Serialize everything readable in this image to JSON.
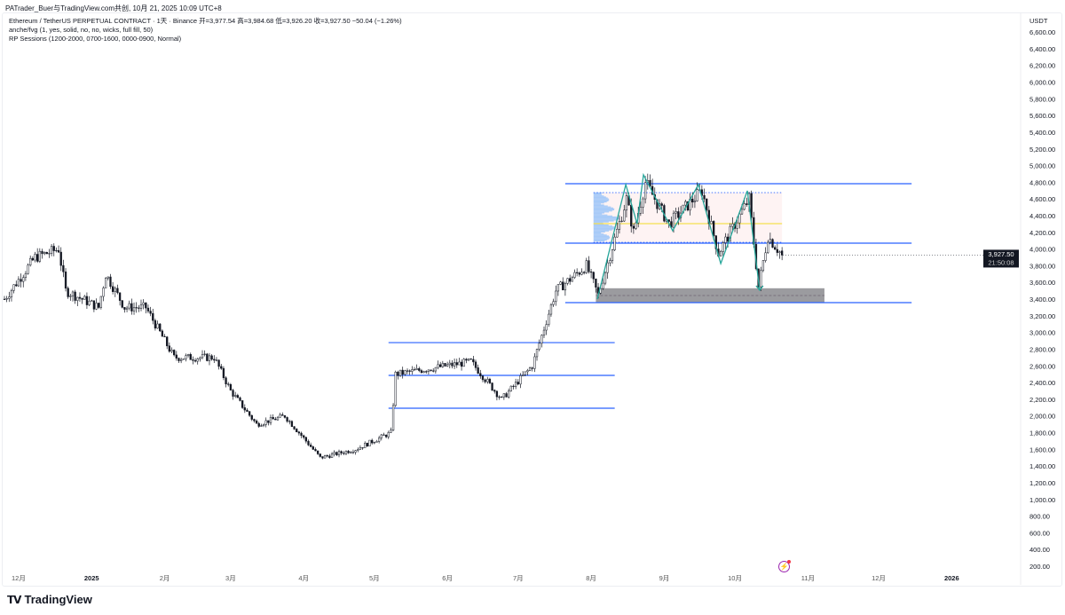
{
  "header": {
    "credit": "PATrader_Buer与TradingView.com共创, 10月 21, 2025 10:09 UTC+8"
  },
  "legend": {
    "symbol_line": "Ethereum / TetherUS PERPETUAL CONTRACT · 1天 · Binance  开=3,977.54  高=3,984.68  低=3,926.20  收=3,927.50  −50.04 (−1.26%)",
    "indicator_1": "anche/fvg (1, yes, solid, no, no, wicks, full fill, 50)",
    "indicator_2": "RP Sessions (1200-2000, 0700-1600, 0000-0900, Normal)"
  },
  "price_axis": {
    "currency": "USDT",
    "last_price": "3,927.50",
    "countdown": "21:50:08"
  },
  "branding": {
    "logo_text": "TradingView",
    "logo_mark": "TV"
  },
  "colors": {
    "up": "#ffffff",
    "down": "#131722",
    "level": "#2962ff",
    "zigzag": "#26a69a",
    "poc": "#f5e050",
    "zone": "#8a8a8e",
    "profile": "#90bff9"
  },
  "chart_data": {
    "type": "candlestick",
    "title": "Ethereum / TetherUS PERPETUAL CONTRACT · 1天 · Binance",
    "ylim": [
      200,
      6600
    ],
    "y_ticks": [
      "6,600.00",
      "6,400.00",
      "6,200.00",
      "6,000.00",
      "5,800.00",
      "5,600.00",
      "5,400.00",
      "5,200.00",
      "5,000.00",
      "4,800.00",
      "4,600.00",
      "4,400.00",
      "4,200.00",
      "4,000.00",
      "3,800.00",
      "3,600.00",
      "3,400.00",
      "3,200.00",
      "3,000.00",
      "2,800.00",
      "2,600.00",
      "2,400.00",
      "2,200.00",
      "2,000.00",
      "1,800.00",
      "1,600.00",
      "1,400.00",
      "1,200.00",
      "1,000.00",
      "800.00",
      "600.00",
      "400.00",
      "200.00"
    ],
    "x_ticks": [
      {
        "label": "12月",
        "day": 6
      },
      {
        "label": "2025",
        "day": 37,
        "year": true
      },
      {
        "label": "2月",
        "day": 68
      },
      {
        "label": "3月",
        "day": 96
      },
      {
        "label": "4月",
        "day": 127
      },
      {
        "label": "5月",
        "day": 157
      },
      {
        "label": "6月",
        "day": 188
      },
      {
        "label": "7月",
        "day": 218
      },
      {
        "label": "8月",
        "day": 249
      },
      {
        "label": "9月",
        "day": 280
      },
      {
        "label": "10月",
        "day": 310
      },
      {
        "label": "11月",
        "day": 341
      },
      {
        "label": "12月",
        "day": 371
      },
      {
        "label": "2026",
        "day": 402,
        "year": true
      }
    ],
    "x_days_visible": [
      -2,
      430
    ],
    "close_path": [
      [
        0,
        3400
      ],
      [
        13,
        3900
      ],
      [
        23,
        4000
      ],
      [
        26,
        3500
      ],
      [
        40,
        3300
      ],
      [
        43,
        3700
      ],
      [
        51,
        3300
      ],
      [
        60,
        3300
      ],
      [
        72,
        2700
      ],
      [
        89,
        2700
      ],
      [
        96,
        2300
      ],
      [
        107,
        1900
      ],
      [
        119,
        2000
      ],
      [
        134,
        1500
      ],
      [
        149,
        1600
      ],
      [
        164,
        1800
      ],
      [
        166,
        2500
      ],
      [
        198,
        2650
      ],
      [
        211,
        2200
      ],
      [
        224,
        2600
      ],
      [
        234,
        3500
      ],
      [
        247,
        3800
      ],
      [
        252,
        3450
      ],
      [
        264,
        4600
      ],
      [
        267,
        4200
      ],
      [
        272,
        4800
      ],
      [
        282,
        4300
      ],
      [
        296,
        4700
      ],
      [
        303,
        3950
      ],
      [
        316,
        4600
      ],
      [
        320,
        3550
      ],
      [
        324,
        4150
      ],
      [
        330,
        3927.5
      ]
    ],
    "levels": [
      {
        "price": 2879,
        "from": 163,
        "to": 259
      },
      {
        "price": 2486,
        "from": 163,
        "to": 259
      },
      {
        "price": 2093,
        "from": 163,
        "to": 259
      },
      {
        "price": 4783,
        "from": 238,
        "to": 385
      },
      {
        "price": 4070,
        "from": 238,
        "to": 385
      },
      {
        "price": 3358,
        "from": 238,
        "to": 385
      }
    ],
    "dotted_levels": [
      {
        "price": 4676,
        "from": 250,
        "to": 330
      },
      {
        "price": 4080,
        "from": 250,
        "to": 330
      }
    ],
    "poc": {
      "price": 4304,
      "from": 250,
      "to": 330
    },
    "fvg_zone": {
      "top": 3530,
      "bottom": 3358,
      "mid": 3443,
      "from": 251,
      "to": 348
    },
    "zigzag": [
      [
        251.6,
        3400
      ],
      [
        263.7,
        4772
      ],
      [
        268.5,
        4304
      ],
      [
        271.2,
        4889
      ],
      [
        283.6,
        4219
      ],
      [
        294.5,
        4772
      ],
      [
        304,
        3826
      ],
      [
        315.3,
        4698
      ],
      [
        320.5,
        3507
      ]
    ]
  }
}
